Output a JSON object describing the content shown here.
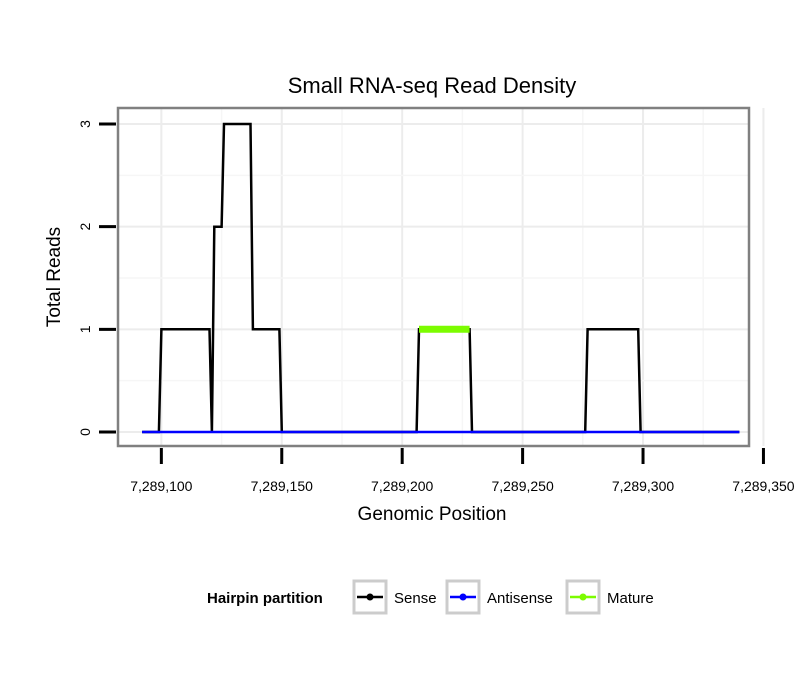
{
  "chart_data": {
    "type": "line",
    "title": "Small RNA-seq Read Density",
    "xlabel": "Genomic Position",
    "ylabel": "Total Reads",
    "xlim": [
      7289082,
      7289344
    ],
    "ylim": [
      0,
      3
    ],
    "x_ticks": [
      7289100,
      7289150,
      7289200,
      7289250,
      7289300,
      7289350
    ],
    "x_tick_labels": [
      "7,289,100",
      "7,289,150",
      "7,289,200",
      "7,289,250",
      "7,289,300",
      "7,289,350"
    ],
    "y_ticks": [
      0,
      1,
      2,
      3
    ],
    "y_tick_labels": [
      "0",
      "1",
      "2",
      "3"
    ],
    "grid": true,
    "legend": {
      "title": "Hairpin partition",
      "position": "bottom",
      "entries": [
        "Sense",
        "Antisense",
        "Mature"
      ]
    },
    "series": [
      {
        "name": "Sense",
        "color": "#000000",
        "points": [
          [
            7289092,
            0
          ],
          [
            7289099,
            0
          ],
          [
            7289100,
            1
          ],
          [
            7289120,
            1
          ],
          [
            7289121,
            0
          ],
          [
            7289122,
            2
          ],
          [
            7289125,
            2
          ],
          [
            7289126,
            3
          ],
          [
            7289137,
            3
          ],
          [
            7289138,
            1
          ],
          [
            7289149,
            1
          ],
          [
            7289150,
            0
          ],
          [
            7289206,
            0
          ],
          [
            7289207,
            1
          ],
          [
            7289228,
            1
          ],
          [
            7289229,
            0
          ],
          [
            7289276,
            0
          ],
          [
            7289277,
            1
          ],
          [
            7289298,
            1
          ],
          [
            7289299,
            0
          ],
          [
            7289340,
            0
          ]
        ]
      },
      {
        "name": "Antisense",
        "color": "#0000ff",
        "points": [
          [
            7289092,
            0
          ],
          [
            7289340,
            0
          ]
        ]
      },
      {
        "name": "Mature",
        "color": "#7cfc00",
        "points": [
          [
            7289207,
            1
          ],
          [
            7289228,
            1
          ]
        ]
      }
    ]
  }
}
